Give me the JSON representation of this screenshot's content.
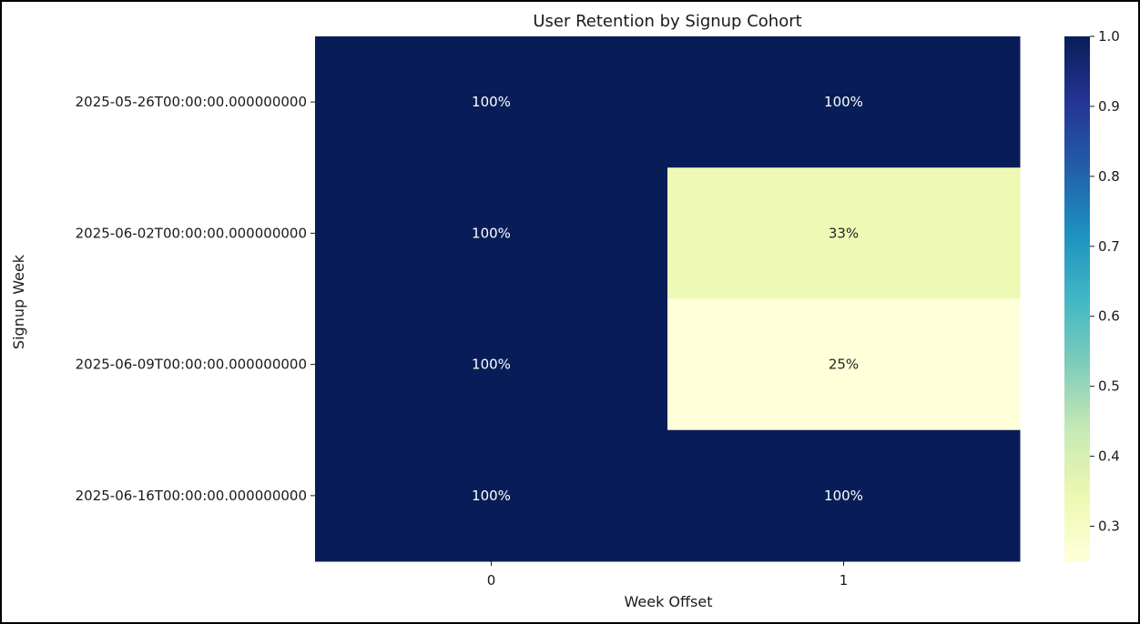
{
  "chart_data": {
    "type": "heatmap",
    "title": "User Retention by Signup Cohort",
    "xlabel": "Week Offset",
    "ylabel": "Signup Week",
    "x_categories": [
      "0",
      "1"
    ],
    "y_categories": [
      "2025-05-26T00:00:00.000000000",
      "2025-06-02T00:00:00.000000000",
      "2025-06-09T00:00:00.000000000",
      "2025-06-16T00:00:00.000000000"
    ],
    "values": [
      [
        1.0,
        1.0
      ],
      [
        1.0,
        0.333
      ],
      [
        1.0,
        0.25
      ],
      [
        1.0,
        1.0
      ]
    ],
    "cell_labels": [
      [
        "100%",
        "100%"
      ],
      [
        "100%",
        "33%"
      ],
      [
        "100%",
        "25%"
      ],
      [
        "100%",
        "100%"
      ]
    ],
    "colorbar": {
      "colormap": "YlGnBu",
      "range": [
        0.25,
        1.0
      ],
      "ticks": [
        "0.3",
        "0.4",
        "0.5",
        "0.6",
        "0.7",
        "0.8",
        "0.9",
        "1.0"
      ],
      "tick_values": [
        0.3,
        0.4,
        0.5,
        0.6,
        0.7,
        0.8,
        0.9,
        1.0
      ]
    }
  }
}
